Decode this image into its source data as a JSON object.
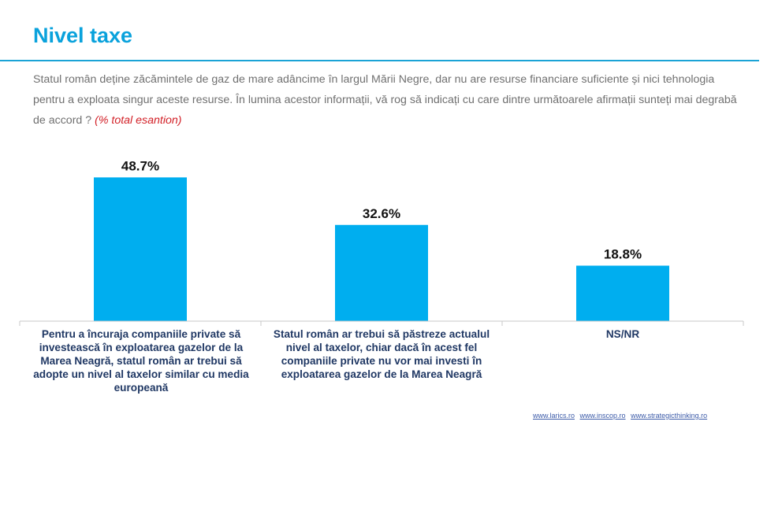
{
  "header": {
    "title": "Nivel taxe",
    "question": "Statul român deține zăcămintele de gaz de mare adâncime în largul Mării Negre, dar nu are resurse financiare suficiente și nici tehnologia pentru a exploata singur aceste resurse. În lumina acestor informații, vă rog să indicați cu care dintre următoarele afirmații sunteți mai degrabă de accord ?",
    "note": "(% total esantion)"
  },
  "chart_data": {
    "type": "bar",
    "categories": [
      "Pentru a încuraja companiile private să investească în exploatarea gazelor de la Marea Neagră, statul român ar trebui să adopte un nivel al taxelor similar cu media europeană",
      "Statul român ar trebui să păstreze actualul nivel al taxelor, chiar dacă în acest fel companiile private nu vor mai investi în exploatarea gazelor de la Marea Neagră",
      "NS/NR"
    ],
    "values": [
      48.7,
      32.6,
      18.8
    ],
    "value_labels": [
      "48.7%",
      "32.6%",
      "18.8%"
    ],
    "title": "",
    "xlabel": "",
    "ylabel": "",
    "ylim": [
      0,
      55
    ],
    "grid": false,
    "colors": {
      "bar": "#00aeef"
    }
  },
  "footer": {
    "links": [
      "www.larics.ro",
      "www.inscop.ro",
      "www.strategicthinking.ro"
    ]
  }
}
